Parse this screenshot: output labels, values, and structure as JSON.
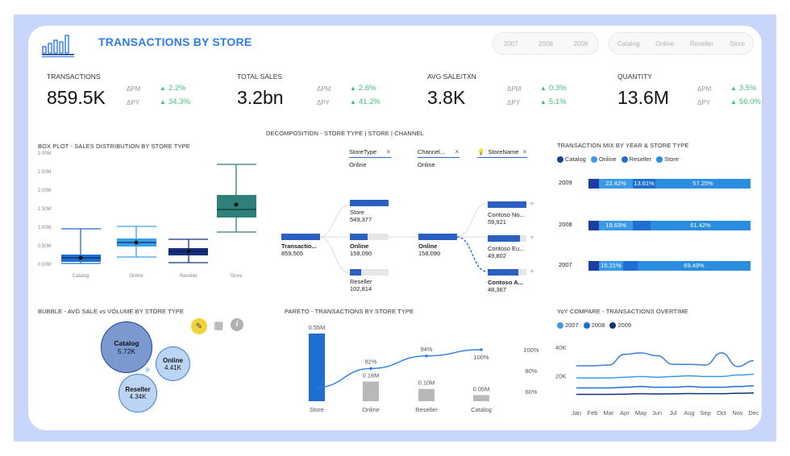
{
  "header": {
    "title": "TRANSACTIONS BY STORE",
    "logo_icon": "bar-city-logo-icon"
  },
  "filters": {
    "years": [
      "2007",
      "2008",
      "2009"
    ],
    "channels": [
      "Catalog",
      "Online",
      "Reseller",
      "Store"
    ]
  },
  "kpis": [
    {
      "label": "TRANSACTIONS",
      "value": "859.5K",
      "pm_label": "ΔPM",
      "pm": "2.2%",
      "py_label": "ΔPY",
      "py": "34.3%"
    },
    {
      "label": "TOTAL SALES",
      "value": "3.2bn",
      "pm_label": "ΔPM",
      "pm": "2.6%",
      "py_label": "ΔPY",
      "py": "41.2%"
    },
    {
      "label": "AVG SALE/TXN",
      "value": "3.8K",
      "pm_label": "ΔPM",
      "pm": "0.3%",
      "py_label": "ΔPY",
      "py": "5.1%"
    },
    {
      "label": "QUANTITY",
      "value": "13.6M",
      "pm_label": "ΔPM",
      "pm": "3.5%",
      "py_label": "ΔPY",
      "py": "56.0%"
    }
  ],
  "boxplot": {
    "title": "BOX PLOT - SALES DISTRIBUTION BY STORE TYPE",
    "y_ticks": [
      "3.00M",
      "2.50M",
      "2.00M",
      "1.50M",
      "1.00M",
      "0.50M",
      "0.00M"
    ],
    "categories": [
      "Catalog",
      "Online",
      "Reseller",
      "Store"
    ],
    "colors": [
      "#1f6fd1",
      "#3aa0e8",
      "#14307a",
      "#2f7f7a"
    ]
  },
  "decomp": {
    "title": "DECOMPOSITION - STORE TYPE | STORE | CHANNEL",
    "headers": [
      {
        "name": "StoreType",
        "value": "Online"
      },
      {
        "name": "Channel...",
        "value": "Online"
      },
      {
        "name": "StoreName",
        "value": ""
      }
    ],
    "root": {
      "label": "Transactio...",
      "value": "859,505"
    },
    "level1": [
      {
        "label": "Store",
        "value": "549,377"
      },
      {
        "label": "Online",
        "value": "158,090"
      },
      {
        "label": "Reseller",
        "value": "102,814"
      }
    ],
    "level2": [
      {
        "label": "Online",
        "value": "158,090"
      }
    ],
    "level3": [
      {
        "label": "Contoso No...",
        "value": "59,921"
      },
      {
        "label": "Contoso Eu...",
        "value": "49,802"
      },
      {
        "label": "Contoso A...",
        "value": "48,367"
      }
    ]
  },
  "mix": {
    "title": "TRANSACTION MIX BY YEAR & STORE TYPE",
    "legend": [
      "Catalog",
      "Online",
      "Reseller",
      "Store"
    ],
    "colors": [
      "#1b3fa0",
      "#3b9ae8",
      "#1f6fd1",
      "#2b8de0"
    ],
    "rows": [
      {
        "year": "2009",
        "labels": [
          "22.42%",
          "13.61%",
          "57.25%"
        ]
      },
      {
        "year": "2008",
        "labels": [
          "19.63%",
          "61.42%"
        ]
      },
      {
        "year": "2007",
        "labels": [
          "15.21%",
          "69.49%"
        ]
      }
    ]
  },
  "bubble": {
    "title": "BUBBLE - AVG SALE vs VOLUME BY STORE TYPE",
    "items": [
      {
        "name": "Catalog",
        "value": "5.72K"
      },
      {
        "name": "Online",
        "value": "4.41K"
      },
      {
        "name": "Reseller",
        "value": "4.34K"
      }
    ]
  },
  "chart_data": [
    {
      "type": "bar",
      "title": "PARETO - TRANSACTIONS BY STORE TYPE",
      "categories": [
        "Store",
        "Online",
        "Reseller",
        "Catalog"
      ],
      "values": [
        0.55,
        0.16,
        0.1,
        0.05
      ],
      "value_labels": [
        "0.55M",
        "0.16M",
        "0.10M",
        "0.05M"
      ],
      "cumulative_labels": [
        "",
        "82%",
        "94%",
        "100%"
      ],
      "cumulative": [
        64,
        82,
        94,
        100
      ],
      "y2_ticks": [
        "100%",
        "80%",
        "60%"
      ],
      "colors": {
        "first": "#1f6fd1",
        "rest": "#b9b9b9",
        "line": "#2b7de9"
      }
    },
    {
      "type": "line",
      "title": "YoY COMPARE - TRANSACTIONS OVERTIME",
      "categories": [
        "Jan",
        "Feb",
        "Mar",
        "Apr",
        "May",
        "Jun",
        "Jul",
        "Aug",
        "Sep",
        "Oct",
        "Nov",
        "Dec"
      ],
      "y_ticks": [
        "40K",
        "20K"
      ],
      "ylim": [
        0,
        45000
      ],
      "series": [
        {
          "name": "2007",
          "color": "#3b9ae8",
          "values": [
            18500,
            18500,
            18500,
            19000,
            19500,
            19000,
            19500,
            20000,
            19500,
            19500,
            20500,
            21000
          ]
        },
        {
          "name": "2008",
          "color": "#1f6fd1",
          "values": [
            11500,
            11500,
            11500,
            12000,
            12500,
            12000,
            12000,
            12500,
            12000,
            12000,
            12500,
            13000
          ]
        },
        {
          "name": "2009",
          "color": "#14307a",
          "values": [
            7000,
            7000,
            7000,
            7200,
            7500,
            7300,
            7400,
            7600,
            7500,
            7500,
            7800,
            8000
          ]
        }
      ],
      "extra_series_points": [
        27000,
        27000,
        27500,
        35000,
        36000,
        34000,
        28000,
        28000,
        27500,
        36000,
        26500,
        30500
      ]
    }
  ]
}
